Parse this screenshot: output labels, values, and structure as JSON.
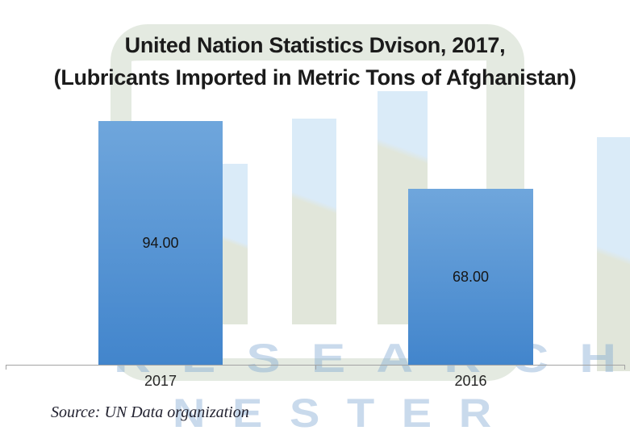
{
  "title": {
    "line1": "United Nation Statistics Dvison, 2017,",
    "line2": "(Lubricants Imported in Metric Tons of Afghanistan)"
  },
  "watermark": {
    "line1": "RESEARCH",
    "line2": "NESTER"
  },
  "source": {
    "text": "Source: UN Data organization"
  },
  "chart_data": {
    "type": "bar",
    "title": "United Nation Statistics Dvison, 2017, (Lubricants Imported in Metric Tons of Afghanistan)",
    "categories": [
      "2017",
      "2016"
    ],
    "values": [
      94,
      68
    ],
    "data_labels": [
      "94.00",
      "68.00"
    ],
    "xlabel": "",
    "ylabel": "",
    "ylim": [
      0,
      94
    ],
    "grid": false,
    "legend_position": "none",
    "bar_color_top": "#6FA6DC",
    "bar_color_bottom": "#4285CC",
    "label_position": "center",
    "source": "Source: UN Data organization"
  }
}
